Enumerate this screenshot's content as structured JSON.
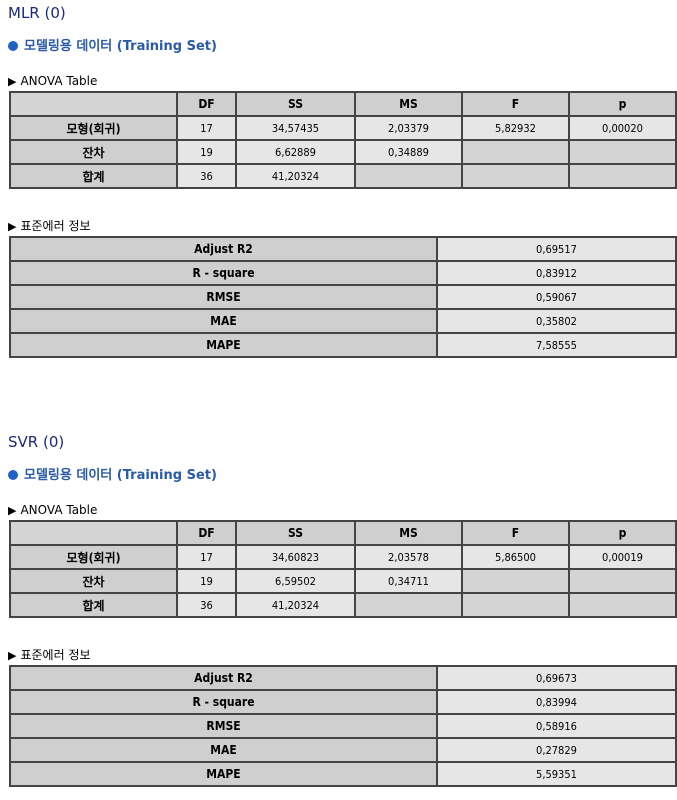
{
  "models": [
    {
      "title": "MLR (0)",
      "dataset_label": "모델링용 데이터 (Training Set)",
      "anova_label": "ANOVA Table",
      "anova": {
        "columns": [
          "DF",
          "SS",
          "MS",
          "F",
          "p"
        ],
        "rows": [
          {
            "name": "모형(회귀)",
            "values": [
              "17",
              "34,57435",
              "2,03379",
              "5,82932",
              "0,00020"
            ]
          },
          {
            "name": "잔차",
            "values": [
              "19",
              "6,62889",
              "0,34889",
              "",
              ""
            ]
          },
          {
            "name": "합계",
            "values": [
              "36",
              "41,20324",
              "",
              "",
              ""
            ]
          }
        ]
      },
      "error_label": "표준에러 정보",
      "errors": [
        {
          "name": "Adjust R2",
          "value": "0,69517"
        },
        {
          "name": "R - square",
          "value": "0,83912"
        },
        {
          "name": "RMSE",
          "value": "0,59067"
        },
        {
          "name": "MAE",
          "value": "0,35802"
        },
        {
          "name": "MAPE",
          "value": "7,58555"
        }
      ]
    },
    {
      "title": "SVR (0)",
      "dataset_label": "모델링용 데이터 (Training Set)",
      "anova_label": "ANOVA Table",
      "anova": {
        "columns": [
          "DF",
          "SS",
          "MS",
          "F",
          "p"
        ],
        "rows": [
          {
            "name": "모형(회귀)",
            "values": [
              "17",
              "34,60823",
              "2,03578",
              "5,86500",
              "0,00019"
            ]
          },
          {
            "name": "잔차",
            "values": [
              "19",
              "6,59502",
              "0,34711",
              "",
              ""
            ]
          },
          {
            "name": "합계",
            "values": [
              "36",
              "41,20324",
              "",
              "",
              ""
            ]
          }
        ]
      },
      "error_label": "표준에러 정보",
      "errors": [
        {
          "name": "Adjust R2",
          "value": "0,69673"
        },
        {
          "name": "R - square",
          "value": "0,83994"
        },
        {
          "name": "RMSE",
          "value": "0,58916"
        },
        {
          "name": "MAE",
          "value": "0,27829"
        },
        {
          "name": "MAPE",
          "value": "5,59351"
        }
      ]
    }
  ]
}
